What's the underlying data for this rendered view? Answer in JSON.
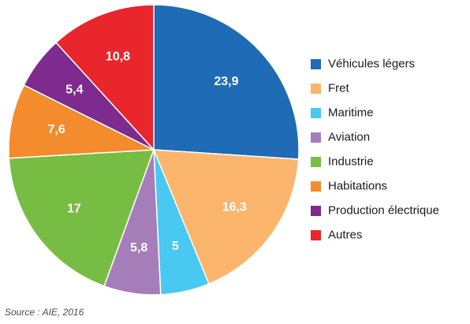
{
  "chart_data": {
    "type": "pie",
    "categories": [
      "Véhicules légers",
      "Fret",
      "Maritime",
      "Aviation",
      "Industrie",
      "Habitations",
      "Production électrique",
      "Autres"
    ],
    "values": [
      23.9,
      16.3,
      5,
      5.8,
      17,
      7.6,
      5.4,
      10.8
    ],
    "value_labels": [
      "23,9",
      "16,3",
      "5",
      "5,8",
      "17",
      "7,6",
      "5,4",
      "10,8"
    ],
    "colors": [
      "#1f6bb5",
      "#fbb56c",
      "#49c8f1",
      "#a57db8",
      "#77bd43",
      "#f48b2c",
      "#7e2a8e",
      "#e8262b"
    ],
    "start_angle_deg": 0,
    "direction": "clockwise",
    "legend_position": "right"
  },
  "source": "Source : AIE, 2016"
}
